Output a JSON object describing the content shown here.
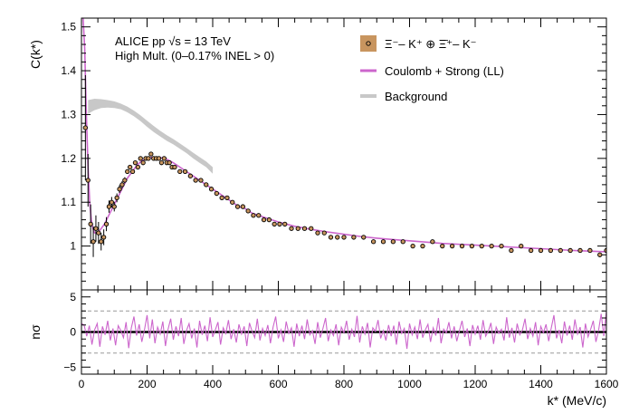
{
  "chart_data": [
    {
      "type": "scatter",
      "panel": "main",
      "ylabel": "C(k*)",
      "xlim": [
        0,
        1600
      ],
      "ylim": [
        0.9,
        1.52
      ],
      "xticks": [
        0,
        200,
        400,
        600,
        800,
        1000,
        1200,
        1400,
        1600
      ],
      "yticks": [
        1,
        1.1,
        1.2,
        1.3,
        1.4,
        1.5
      ],
      "yticklabels": [
        "1",
        "1.1",
        "1.2",
        "1.3",
        "1.4",
        "1.5"
      ],
      "annotations": [
        "ALICE pp √s = 13 TeV",
        "High Mult. (0–0.17% INEL > 0)"
      ],
      "legend_position": "top-right",
      "legend": [
        {
          "label": "Ξ⁻– K⁺ ⊕ Ξ̄⁺– K⁻",
          "marker": "data-points",
          "color": "#c8955f"
        },
        {
          "label": "Coulomb + Strong (LL)",
          "marker": "line",
          "color": "#cc66cc"
        },
        {
          "label": "Background",
          "marker": "band",
          "color": "#c8c8c8"
        }
      ],
      "series": [
        {
          "name": "Ξ⁻– K⁺ ⊕ Ξ̄⁺– K⁻",
          "kind": "points",
          "x": [
            12,
            20,
            28,
            36,
            44,
            52,
            60,
            68,
            76,
            84,
            92,
            100,
            108,
            116,
            124,
            132,
            140,
            148,
            156,
            164,
            172,
            180,
            188,
            196,
            204,
            212,
            220,
            228,
            236,
            244,
            252,
            260,
            268,
            276,
            284,
            300,
            316,
            332,
            348,
            364,
            380,
            396,
            412,
            428,
            444,
            460,
            476,
            492,
            508,
            524,
            540,
            556,
            572,
            588,
            604,
            620,
            640,
            660,
            680,
            700,
            720,
            740,
            760,
            780,
            800,
            830,
            860,
            890,
            920,
            950,
            980,
            1010,
            1040,
            1070,
            1100,
            1130,
            1160,
            1190,
            1220,
            1250,
            1280,
            1310,
            1340,
            1370,
            1400,
            1430,
            1460,
            1490,
            1520,
            1550,
            1580,
            1600
          ],
          "y": [
            1.27,
            1.15,
            1.05,
            1.01,
            1.04,
            1.03,
            1.01,
            1.02,
            1.05,
            1.09,
            1.1,
            1.09,
            1.11,
            1.13,
            1.14,
            1.15,
            1.17,
            1.18,
            1.17,
            1.19,
            1.18,
            1.2,
            1.19,
            1.2,
            1.2,
            1.21,
            1.2,
            1.2,
            1.2,
            1.19,
            1.2,
            1.19,
            1.19,
            1.18,
            1.18,
            1.17,
            1.17,
            1.16,
            1.15,
            1.15,
            1.14,
            1.13,
            1.12,
            1.11,
            1.11,
            1.1,
            1.09,
            1.09,
            1.08,
            1.07,
            1.07,
            1.06,
            1.06,
            1.05,
            1.05,
            1.05,
            1.04,
            1.04,
            1.04,
            1.04,
            1.03,
            1.03,
            1.02,
            1.02,
            1.02,
            1.02,
            1.02,
            1.01,
            1.01,
            1.01,
            1.01,
            1.0,
            1.0,
            1.01,
            1.0,
            1.0,
            1.0,
            1.0,
            1.0,
            1.0,
            1.0,
            0.99,
            1.0,
            0.99,
            0.99,
            0.99,
            0.99,
            0.99,
            0.99,
            0.99,
            0.98,
            0.99
          ],
          "yerr": [
            0.12,
            0.06,
            0.045,
            0.035,
            0.03,
            0.025,
            0.02,
            0.018,
            0.016,
            0.014,
            0.012,
            0.011,
            0.01,
            0.009,
            0.008,
            0.007,
            0.006,
            0.006,
            0.005,
            0.005,
            0.005,
            0.005,
            0.004,
            0.004,
            0.004,
            0.004,
            0.004,
            0.004,
            0.004,
            0.004,
            0.004,
            0.004,
            0.004,
            0.004,
            0.004,
            0.004,
            0.004,
            0.004,
            0.004,
            0.004,
            0.004,
            0.004,
            0.004,
            0.004,
            0.004,
            0.004,
            0.004,
            0.004,
            0.004,
            0.004,
            0.004,
            0.004,
            0.004,
            0.004,
            0.004,
            0.004,
            0.004,
            0.004,
            0.004,
            0.004,
            0.004,
            0.004,
            0.004,
            0.004,
            0.004,
            0.004,
            0.004,
            0.004,
            0.004,
            0.004,
            0.004,
            0.004,
            0.004,
            0.004,
            0.004,
            0.004,
            0.004,
            0.004,
            0.004,
            0.004,
            0.004,
            0.004,
            0.004,
            0.004,
            0.004,
            0.004,
            0.004,
            0.004,
            0.004,
            0.004,
            0.004,
            0.004
          ]
        },
        {
          "name": "Coulomb + Strong (LL)",
          "kind": "line",
          "x": [
            5,
            10,
            15,
            20,
            25,
            30,
            35,
            40,
            45,
            50,
            55,
            60,
            65,
            70,
            80,
            90,
            100,
            110,
            120,
            130,
            140,
            150,
            160,
            170,
            180,
            190,
            200,
            210,
            220,
            230,
            240,
            250,
            260,
            280,
            300,
            320,
            340,
            360,
            380,
            400,
            420,
            440,
            460,
            480,
            500,
            520,
            540,
            560,
            580,
            600,
            650,
            700,
            750,
            800,
            850,
            900,
            950,
            1000,
            1100,
            1200,
            1300,
            1400,
            1500,
            1600
          ],
          "y": [
            1.52,
            1.45,
            1.3,
            1.18,
            1.1,
            1.06,
            1.04,
            1.03,
            1.03,
            1.03,
            1.035,
            1.04,
            1.045,
            1.05,
            1.065,
            1.08,
            1.095,
            1.11,
            1.125,
            1.14,
            1.155,
            1.165,
            1.175,
            1.185,
            1.192,
            1.197,
            1.2,
            1.202,
            1.203,
            1.203,
            1.202,
            1.2,
            1.198,
            1.19,
            1.18,
            1.17,
            1.16,
            1.15,
            1.14,
            1.13,
            1.12,
            1.11,
            1.1,
            1.09,
            1.085,
            1.075,
            1.07,
            1.065,
            1.06,
            1.055,
            1.045,
            1.038,
            1.032,
            1.027,
            1.022,
            1.018,
            1.015,
            1.012,
            1.006,
            1.002,
            0.998,
            0.994,
            0.99,
            0.987
          ]
        },
        {
          "name": "Background",
          "kind": "band",
          "x": [
            20,
            40,
            60,
            80,
            100,
            120,
            140,
            160,
            180,
            200,
            220,
            240,
            260,
            280,
            300,
            320,
            340,
            360,
            380,
            400
          ],
          "ylow": [
            1.302,
            1.31,
            1.315,
            1.316,
            1.315,
            1.312,
            1.305,
            1.296,
            1.285,
            1.272,
            1.26,
            1.25,
            1.24,
            1.232,
            1.222,
            1.212,
            1.2,
            1.19,
            1.18,
            1.165
          ],
          "yhigh": [
            1.333,
            1.336,
            1.335,
            1.333,
            1.33,
            1.325,
            1.318,
            1.309,
            1.298,
            1.286,
            1.274,
            1.263,
            1.253,
            1.244,
            1.234,
            1.224,
            1.213,
            1.203,
            1.193,
            1.18
          ]
        }
      ]
    },
    {
      "type": "line",
      "panel": "ratio",
      "ylabel": "nσ",
      "xlabel": "k* (MeV/c)",
      "xlim": [
        0,
        1600
      ],
      "ylim": [
        -6,
        6
      ],
      "yticks": [
        -5,
        0,
        5
      ],
      "yticklabels": [
        "−5",
        "0",
        "5"
      ],
      "xticklabels": [
        "0",
        "200",
        "400",
        "600",
        "800",
        "1000",
        "1200",
        "1400",
        "1600"
      ],
      "reference_lines": [
        3,
        -3
      ],
      "series": [
        {
          "name": "Coulomb + Strong (LL)",
          "x": [
            0,
            8,
            16,
            24,
            32,
            40,
            48,
            56,
            64,
            72,
            80,
            88,
            96,
            104,
            112,
            120,
            128,
            136,
            144,
            152,
            160,
            168,
            176,
            184,
            192,
            200,
            208,
            216,
            224,
            232,
            240,
            248,
            256,
            264,
            272,
            280,
            288,
            296,
            304,
            312,
            320,
            328,
            336,
            344,
            352,
            360,
            368,
            376,
            384,
            392,
            400,
            408,
            416,
            424,
            432,
            440,
            448,
            456,
            464,
            472,
            480,
            488,
            496,
            504,
            512,
            520,
            528,
            536,
            544,
            552,
            560,
            568,
            576,
            584,
            592,
            600,
            608,
            616,
            624,
            632,
            640,
            648,
            656,
            664,
            672,
            680,
            688,
            696,
            704,
            712,
            720,
            728,
            736,
            744,
            752,
            760,
            768,
            776,
            784,
            792,
            800,
            808,
            816,
            824,
            832,
            840,
            848,
            856,
            864,
            872,
            880,
            888,
            896,
            904,
            912,
            920,
            928,
            936,
            944,
            952,
            960,
            968,
            976,
            984,
            992,
            1000,
            1008,
            1016,
            1024,
            1032,
            1040,
            1048,
            1056,
            1064,
            1072,
            1080,
            1088,
            1096,
            1104,
            1112,
            1120,
            1128,
            1136,
            1144,
            1152,
            1160,
            1168,
            1176,
            1184,
            1192,
            1200,
            1208,
            1216,
            1224,
            1232,
            1240,
            1248,
            1256,
            1264,
            1272,
            1280,
            1288,
            1296,
            1304,
            1312,
            1320,
            1328,
            1336,
            1344,
            1352,
            1360,
            1368,
            1376,
            1384,
            1392,
            1400,
            1408,
            1416,
            1424,
            1432,
            1440,
            1448,
            1456,
            1464,
            1472,
            1480,
            1488,
            1496,
            1504,
            1512,
            1520,
            1528,
            1536,
            1544,
            1552,
            1560,
            1568,
            1576,
            1584,
            1592,
            1600
          ],
          "y": [
            1.2,
            1.0,
            -0.6,
            0.9,
            -1.8,
            0.3,
            1.2,
            -2.1,
            0.8,
            -0.4,
            1.6,
            -1.2,
            0.5,
            -1.9,
            0.9,
            0.2,
            -0.8,
            1.4,
            -2.3,
            0.6,
            2.2,
            -0.5,
            1.1,
            -1.4,
            0.3,
            2.4,
            -0.9,
            1.8,
            -1.6,
            0.7,
            -0.3,
            1.5,
            -2.0,
            0.4,
            1.9,
            -1.1,
            0.8,
            -0.6,
            2.0,
            -1.7,
            0.2,
            1.2,
            -0.9,
            0.5,
            -2.2,
            1.6,
            -0.4,
            0.9,
            -1.3,
            2.1,
            -0.7,
            0.3,
            1.4,
            -1.8,
            0.6,
            -0.2,
            1.7,
            -1.0,
            0.4,
            -1.5,
            1.1,
            -0.3,
            0.8,
            -2.0,
            1.3,
            0.1,
            -0.8,
            1.9,
            -1.2,
            0.5,
            -0.5,
            1.0,
            -1.6,
            0.7,
            2.2,
            -0.9,
            0.3,
            -1.4,
            1.5,
            -0.2,
            0.6,
            -2.1,
            1.2,
            -0.6,
            0.9,
            -1.0,
            1.8,
            -0.4,
            0.2,
            -1.7,
            1.4,
            -0.8,
            0.5,
            2.0,
            -1.3,
            0.3,
            -0.5,
            1.1,
            -1.9,
            0.7,
            -0.1,
            1.6,
            -1.1,
            0.4,
            -0.7,
            2.3,
            -1.5,
            0.8,
            -0.3,
            1.3,
            -2.2,
            0.6,
            0.1,
            1.7,
            -0.9,
            0.2,
            -1.2,
            1.0,
            -0.6,
            0.9,
            -1.8,
            1.5,
            -0.2,
            0.5,
            -2.4,
            1.2,
            -0.4,
            0.7,
            -1.0,
            1.8,
            -0.8,
            0.3,
            1.1,
            -1.4,
            0.6,
            -0.5,
            2.0,
            -1.6,
            0.4,
            -0.1,
            1.4,
            -0.9,
            0.8,
            -1.3,
            0.2,
            1.6,
            -0.7,
            0.5,
            -2.0,
            1.0,
            -0.3,
            0.9,
            -1.1,
            1.7,
            -0.6,
            0.1,
            1.3,
            -1.7,
            0.7,
            -0.2,
            0.4,
            -1.2,
            2.1,
            -0.8,
            0.6,
            -1.5,
            1.2,
            -0.4,
            0.3,
            1.9,
            -1.0,
            0.5,
            -0.6,
            1.4,
            -1.9,
            0.8,
            -0.1,
            1.1,
            -1.3,
            0.6,
            2.4,
            -0.9,
            0.3,
            -1.6,
            1.5,
            -0.5,
            0.9,
            -1.1,
            1.8,
            -0.3,
            0.7,
            -2.2,
            1.2,
            -0.7,
            0.4,
            1.6,
            -1.4,
            0.2,
            2.6,
            -0.6,
            3.0
          ]
        }
      ]
    }
  ]
}
